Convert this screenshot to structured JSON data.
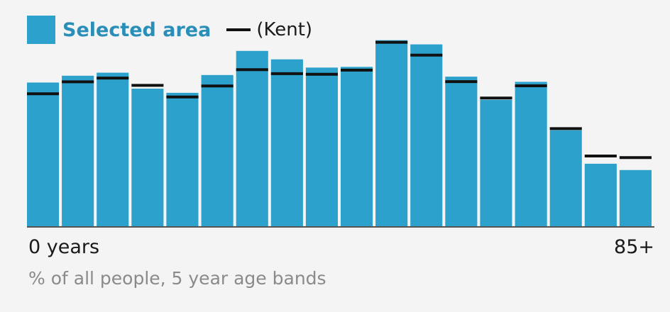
{
  "colors": {
    "selected": "#2ba1cc",
    "comparison": "#111111",
    "label_selected": "#2a8fb8"
  },
  "legend": {
    "selected_label": "Selected area",
    "comparison_label": "(Kent)"
  },
  "x_axis": {
    "start_label": "0 years",
    "end_label": "85+"
  },
  "caption": "% of all people, 5 year age bands",
  "chart_data": {
    "type": "bar",
    "series": [
      {
        "name": "Selected area",
        "values": [
          6.17,
          6.46,
          6.59,
          5.91,
          5.73,
          6.49,
          7.52,
          7.16,
          6.81,
          6.84,
          7.98,
          7.8,
          6.42,
          5.43,
          6.2,
          4.13,
          2.7,
          2.43
        ]
      },
      {
        "name": "(Kent)",
        "values": [
          5.69,
          6.2,
          6.36,
          6.05,
          5.55,
          6.02,
          6.72,
          6.55,
          6.52,
          6.7,
          7.89,
          7.34,
          6.21,
          5.51,
          6.03,
          4.2,
          3.03,
          2.96
        ]
      }
    ],
    "ylim": [
      0,
      9
    ],
    "grid": false,
    "legend": "top-left"
  }
}
